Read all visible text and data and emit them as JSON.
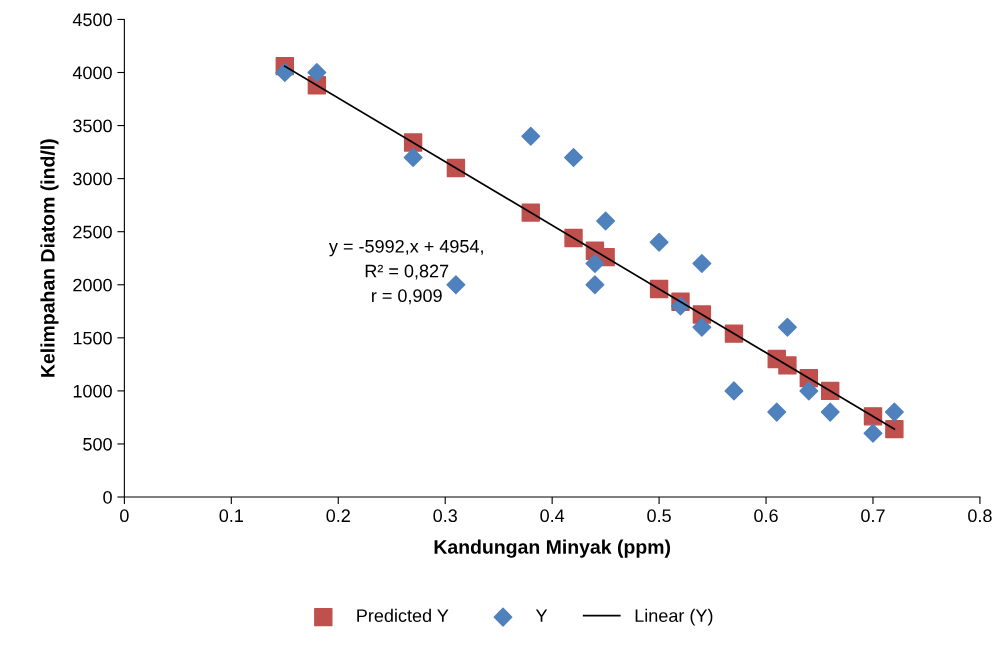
{
  "chart_data": {
    "type": "scatter",
    "xlabel": "Kandungan Minyak (ppm)",
    "ylabel": "Kelimpahan Diatom (ind/l)",
    "xlim": [
      0,
      0.8
    ],
    "xticks": [
      0,
      0.1,
      0.2,
      0.3,
      0.4,
      0.5,
      0.6,
      0.7,
      0.8
    ],
    "ylim": [
      0,
      4500
    ],
    "yticks": [
      0,
      500,
      1000,
      1500,
      2000,
      2500,
      3000,
      3500,
      4000,
      4500
    ],
    "grid": false,
    "legend": "bottom",
    "annotations": [
      "y = -5992,x + 4954,\nR² = 0,827\nr = 0,909"
    ],
    "series": [
      {
        "name": "Predicted Y",
        "marker": "square",
        "color": "#c0504d",
        "x": [
          0.15,
          0.18,
          0.27,
          0.31,
          0.38,
          0.42,
          0.44,
          0.45,
          0.5,
          0.52,
          0.54,
          0.57,
          0.61,
          0.62,
          0.64,
          0.66,
          0.7,
          0.72
        ],
        "values": [
          4060,
          3880,
          3340,
          3100,
          2680,
          2440,
          2320,
          2260,
          1960,
          1840,
          1720,
          1540,
          1300,
          1240,
          1120,
          1000,
          760,
          640
        ]
      },
      {
        "name": "Y",
        "marker": "diamond",
        "color": "#4f81bd",
        "x": [
          0.15,
          0.18,
          0.27,
          0.31,
          0.38,
          0.42,
          0.44,
          0.44,
          0.45,
          0.5,
          0.52,
          0.54,
          0.54,
          0.57,
          0.61,
          0.62,
          0.64,
          0.66,
          0.7,
          0.72
        ],
        "values": [
          4000,
          4000,
          3200,
          2000,
          3400,
          3200,
          2200,
          2000,
          2600,
          2400,
          1800,
          1600,
          2200,
          1000,
          800,
          1600,
          1000,
          800,
          600,
          800
        ]
      },
      {
        "name": "Linear (Y)",
        "type": "line",
        "marker": "none",
        "line_style": "solid",
        "color": "#000000",
        "x": [
          0.15,
          0.72
        ],
        "values": [
          4060,
          640
        ]
      }
    ]
  }
}
